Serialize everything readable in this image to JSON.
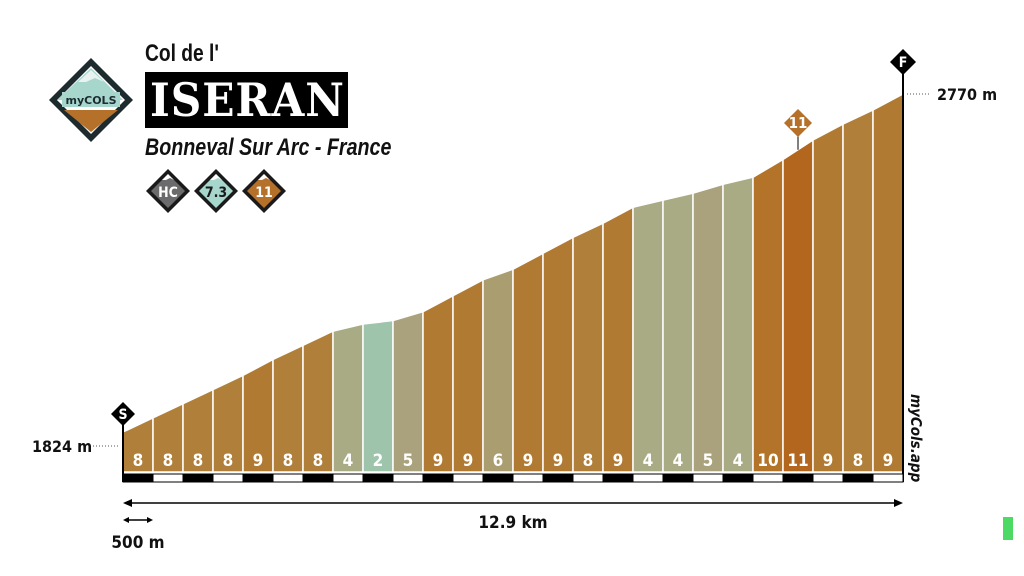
{
  "header": {
    "logo_text": "myCOLS",
    "title_prefix": "Col de l'",
    "title": "ISERAN",
    "subtitle": "Bonneval Sur Arc - France",
    "badges": [
      {
        "label": "HC",
        "color": "#6b6b6d"
      },
      {
        "label": "7.3",
        "color": "#a6d6cc"
      },
      {
        "label": "11",
        "color": "#b5702a"
      }
    ]
  },
  "chart_data": {
    "type": "area",
    "title": "ISERAN",
    "segment_length_m": 500,
    "total_distance_label": "12.9 km",
    "scale_label": "500 m",
    "start_elevation_label": "1824 m",
    "end_elevation_label": "2770 m",
    "start_elevation": 1824,
    "end_elevation": 2770,
    "start_marker": "S",
    "finish_marker": "F",
    "max_gradient_marker": "11",
    "max_gradient_segment": 23,
    "gradients": [
      8,
      8,
      8,
      8,
      9,
      8,
      8,
      4,
      2,
      5,
      9,
      9,
      6,
      9,
      9,
      8,
      9,
      4,
      4,
      5,
      4,
      10,
      11,
      9,
      8,
      9
    ],
    "gradient_colors": {
      "2": "#9fc4ac",
      "4": "#a9ab84",
      "5": "#aaa27c",
      "6": "#aa9d70",
      "8": "#b0803b",
      "9": "#b07a32",
      "10": "#b3742a",
      "11": "#b2661e"
    },
    "watermark": "myCols.app"
  }
}
